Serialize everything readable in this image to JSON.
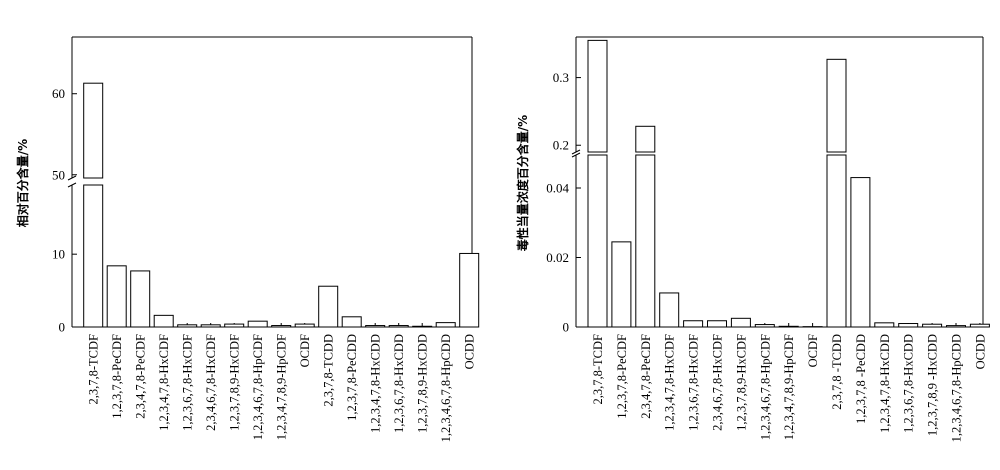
{
  "chart_data": [
    {
      "type": "bar",
      "ylabel": "相对百分含量/%",
      "broken_axis": true,
      "ylim_lower": [
        0,
        19.5
      ],
      "ylim_upper": [
        49.6,
        67
      ],
      "yticks": [
        {
          "value": 0,
          "label": "0"
        },
        {
          "value": 10,
          "label": "10"
        },
        {
          "value": 50,
          "label": "50"
        },
        {
          "value": 60,
          "label": "60"
        }
      ],
      "categories": [
        "2,3,7,8-TCDF",
        "1,2,3,7,8-PeCDF",
        "2,3,4,7,8-PeCDF",
        "1,2,3,4,7,8-HxCDF",
        "1,2,3,6,7,8-HxCDF",
        "2,3,4,6,7,8-HxCDF",
        "1,2,3,7,8,9-HxCDF",
        "1,2,3,4,6,7,8-HpCDF",
        "1,2,3,4,7,8,9-HpCDF",
        "OCDF",
        "2,3,7,8-TCDD",
        "1,2,3,7,8-PeCDD",
        "1,2,3,4,7,8-HxCDD",
        "1,2,3,6,7,8-HxCDD",
        "1,2,3,7,8,9-HxCDD",
        "1,2,3,4,6,7,8-HpCDD",
        "OCDD"
      ],
      "values": [
        61.3,
        8.4,
        7.7,
        1.6,
        0.3,
        0.3,
        0.4,
        0.8,
        0.2,
        0.4,
        5.6,
        1.4,
        0.2,
        0.2,
        0.1,
        0.6,
        10.1
      ]
    },
    {
      "type": "bar",
      "ylabel": "毒性当量浓度百分含量/%",
      "broken_axis": true,
      "ylim_lower": [
        0,
        0.0495
      ],
      "ylim_upper": [
        0.19,
        0.36
      ],
      "yticks": [
        {
          "value": 0,
          "label": "0"
        },
        {
          "value": 0.02,
          "label": "0.02"
        },
        {
          "value": 0.04,
          "label": "0.04"
        },
        {
          "value": 0.2,
          "label": "0.2"
        },
        {
          "value": 0.3,
          "label": "0.3"
        }
      ],
      "categories": [
        "2,3,7,8-TCDF",
        "1,2,3,7,8-PeCDF",
        "2,3,4,7,8-PeCDF",
        "1,2,3,4,7,8-HxCDF",
        "1,2,3,6,7,8-HxCDF",
        "2,3,4,6,7,8-HxCDF",
        "1,2,3,7,8,9-HxCDF",
        "1,2,3,4,6,7,8-HpCDF",
        "1,2,3,4,7,8,9-HpCDF",
        "OCDF",
        "2,3,7,8 -TCDD",
        "1,2,3,7,8 -PeCDD",
        "1,2,3,4,7,8-HxCDD",
        "1,2,3,6,7,8-HxCDD",
        "1,2,3,7,8,9 -HxCDD",
        "1,2,3,4,6,7,8-HpCDD",
        "OCDD"
      ],
      "values": [
        0.355,
        0.0245,
        0.228,
        0.0098,
        0.0018,
        0.0018,
        0.0025,
        0.0007,
        0.0002,
        0.0001,
        0.327,
        0.043,
        0.0012,
        0.001,
        0.0008,
        0.0004,
        0.0008
      ]
    }
  ]
}
